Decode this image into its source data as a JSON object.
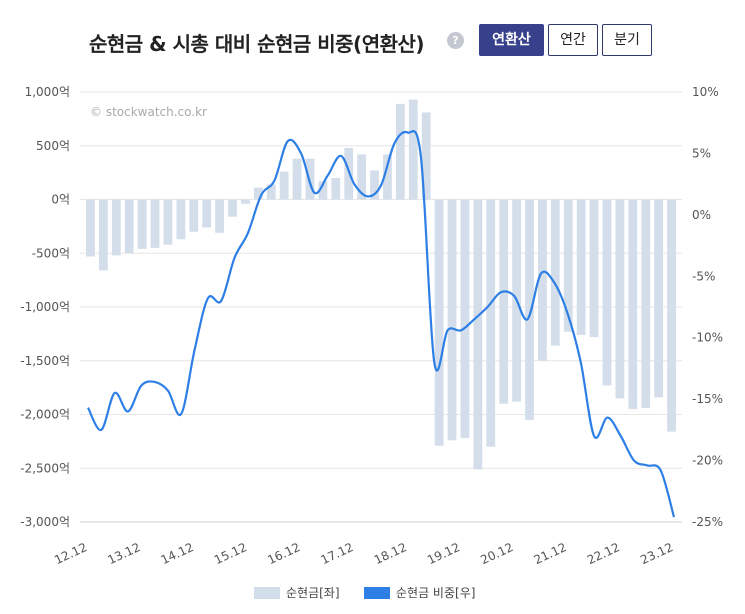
{
  "header": {
    "title": "순현금 & 시총 대비 순현금 비중(연환산)",
    "help_symbol": "?",
    "buttons": [
      {
        "label": "연환산",
        "active": true
      },
      {
        "label": "연간",
        "active": false
      },
      {
        "label": "분기",
        "active": false
      }
    ]
  },
  "chart_data": {
    "type": "bar+line",
    "watermark": "© stockwatch.co.kr",
    "x_tick_labels": [
      "12.12",
      "13.12",
      "14.12",
      "15.12",
      "16.12",
      "17.12",
      "18.12",
      "19.12",
      "20.12",
      "21.12",
      "22.12",
      "23.12"
    ],
    "left_axis": {
      "min": -3000,
      "max": 1000,
      "ticks": [
        1000,
        500,
        0,
        -500,
        -1000,
        -1500,
        -2000,
        -2500,
        -3000
      ],
      "tick_labels": [
        "1,000억",
        "500억",
        "0억",
        "-500억",
        "-1,000억",
        "-1,500억",
        "-2,000억",
        "-2,500억",
        "-3,000억"
      ]
    },
    "right_axis": {
      "min": -25,
      "max": 10,
      "ticks": [
        10,
        5,
        0,
        -5,
        -10,
        -15,
        -20,
        -25
      ],
      "tick_labels": [
        "10%",
        "5%",
        "0%",
        "-5%",
        "-10%",
        "-15%",
        "-20%",
        "-25%"
      ]
    },
    "grid": true,
    "legend_position": "bottom-center",
    "colors": {
      "bar": "#d3deea",
      "line": "#2d7fe6"
    },
    "series": [
      {
        "name": "순현금[좌]",
        "type": "bar",
        "axis": "left",
        "values": [
          -530,
          -660,
          -520,
          -500,
          -460,
          -450,
          -420,
          -370,
          -300,
          -260,
          -310,
          -160,
          -40,
          110,
          140,
          260,
          380,
          380,
          170,
          200,
          480,
          420,
          270,
          420,
          890,
          930,
          810,
          -2290,
          -2240,
          -2220,
          -2510,
          -2300,
          -1900,
          -1880,
          -2050,
          -1500,
          -1360,
          -1230,
          -1260,
          -1280,
          -1730,
          -1850,
          -1950,
          -1940,
          -1840,
          -2160
        ]
      },
      {
        "name": "순현금 비중[우]",
        "type": "line",
        "axis": "right",
        "points": [
          {
            "x": 0,
            "y": -15.7
          },
          {
            "x": 0.25,
            "y": -17.5
          },
          {
            "x": 0.5,
            "y": -14.5
          },
          {
            "x": 0.75,
            "y": -16.0
          },
          {
            "x": 1.0,
            "y": -13.9
          },
          {
            "x": 1.25,
            "y": -13.6
          },
          {
            "x": 1.5,
            "y": -14.3
          },
          {
            "x": 1.75,
            "y": -16.2
          },
          {
            "x": 2.0,
            "y": -11.0
          },
          {
            "x": 2.25,
            "y": -6.8
          },
          {
            "x": 2.5,
            "y": -7.0
          },
          {
            "x": 2.75,
            "y": -3.5
          },
          {
            "x": 3.0,
            "y": -1.5
          },
          {
            "x": 3.25,
            "y": 1.6
          },
          {
            "x": 3.5,
            "y": 2.8
          },
          {
            "x": 3.75,
            "y": 6.0
          },
          {
            "x": 4.0,
            "y": 5.0
          },
          {
            "x": 4.25,
            "y": 1.8
          },
          {
            "x": 4.5,
            "y": 3.2
          },
          {
            "x": 4.75,
            "y": 4.8
          },
          {
            "x": 5.0,
            "y": 2.5
          },
          {
            "x": 5.25,
            "y": 1.5
          },
          {
            "x": 5.5,
            "y": 2.4
          },
          {
            "x": 5.75,
            "y": 5.8
          },
          {
            "x": 6.0,
            "y": 6.7
          },
          {
            "x": 6.25,
            "y": 4.7
          },
          {
            "x": 6.5,
            "y": -12.0
          },
          {
            "x": 6.75,
            "y": -9.4
          },
          {
            "x": 7.0,
            "y": -9.4
          },
          {
            "x": 7.25,
            "y": -8.5
          },
          {
            "x": 7.5,
            "y": -7.5
          },
          {
            "x": 7.75,
            "y": -6.3
          },
          {
            "x": 8.0,
            "y": -6.6
          },
          {
            "x": 8.25,
            "y": -8.5
          },
          {
            "x": 8.5,
            "y": -4.8
          },
          {
            "x": 8.75,
            "y": -5.5
          },
          {
            "x": 9.0,
            "y": -8.0
          },
          {
            "x": 9.25,
            "y": -12.0
          },
          {
            "x": 9.5,
            "y": -18.0
          },
          {
            "x": 9.75,
            "y": -16.5
          },
          {
            "x": 10.0,
            "y": -18.0
          },
          {
            "x": 10.25,
            "y": -20.0
          },
          {
            "x": 10.5,
            "y": -20.4
          },
          {
            "x": 10.75,
            "y": -20.8
          },
          {
            "x": 11.0,
            "y": -24.6
          }
        ]
      }
    ]
  }
}
